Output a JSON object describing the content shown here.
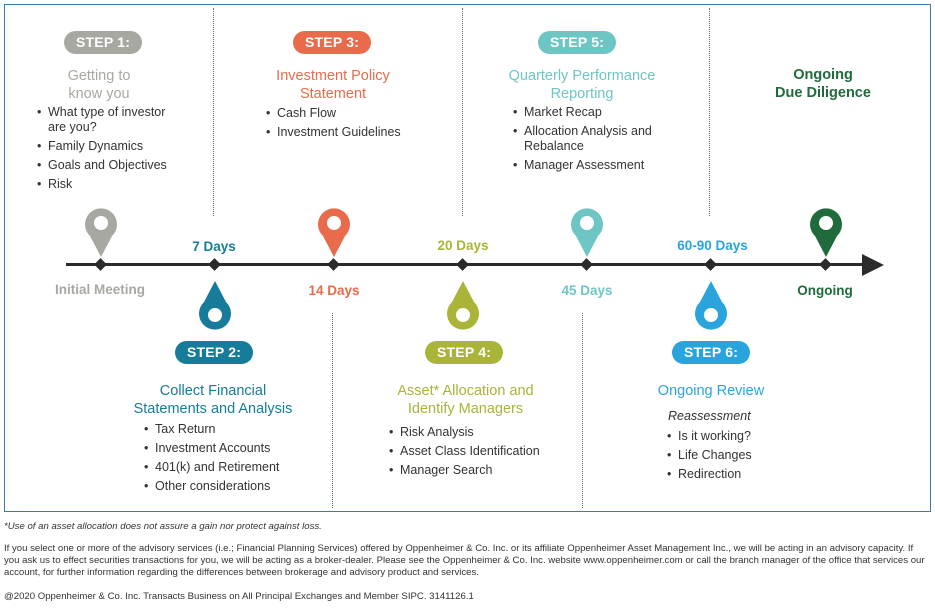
{
  "colors": {
    "step1": "#a8a8a2",
    "step2": "#167c99",
    "step3": "#ea6b4b",
    "step4": "#a9b439",
    "step5": "#6ec6c4",
    "step6": "#2aa4dc",
    "ongoing": "#1f6b3b",
    "frame": "#3f79a8",
    "axis": "#2b2b2b"
  },
  "icons": {
    "pin": "map-pin-icon",
    "arrow": "arrowhead-icon"
  },
  "timeline": {
    "initial": "Initial Meeting",
    "days7": "7 Days",
    "days14": "14 Days",
    "days20": "20 Days",
    "days45": "45 Days",
    "days6090": "60-90 Days",
    "ongoing": "Ongoing"
  },
  "step1": {
    "badge": "STEP 1:",
    "title_l1": "Getting to",
    "title_l2": "know you",
    "items": [
      "What type of investor are you?",
      "Family Dynamics",
      "Goals and Objectives",
      "Risk"
    ]
  },
  "step2": {
    "badge": "STEP 2:",
    "title_l1": "Collect Financial",
    "title_l2": "Statements and Analysis",
    "items": [
      "Tax Return",
      "Investment Accounts",
      "401(k) and Retirement",
      "Other considerations"
    ]
  },
  "step3": {
    "badge": "STEP 3:",
    "title_l1": "Investment Policy",
    "title_l2": "Statement",
    "items": [
      "Cash Flow",
      "Investment Guidelines"
    ]
  },
  "step4": {
    "badge": "STEP 4:",
    "title_l1": "Asset* Allocation and",
    "title_l2": "Identify Managers",
    "items": [
      "Risk Analysis",
      "Asset Class Identification",
      "Manager Search"
    ]
  },
  "step5": {
    "badge": "STEP 5:",
    "title_l1": "Quarterly Performance",
    "title_l2": "Reporting",
    "items": [
      "Market Recap",
      "Allocation Analysis and Rebalance",
      "Manager Assessment"
    ]
  },
  "step6": {
    "badge": "STEP 6:",
    "title": "Ongoing Review",
    "subtitle": "Reassessment",
    "items": [
      "Is it working?",
      "Life Changes",
      "Redirection"
    ]
  },
  "ongoing": {
    "title_l1": "Ongoing",
    "title_l2": "Due Diligence"
  },
  "footer": {
    "note": "*Use of an asset allocation does not assure a gain nor protect against loss.",
    "disclosure": "If you select one or more of the advisory services (i.e.; Financial Planning Services) offered by Oppenheimer & Co. Inc. or its affiliate Oppenheimer Asset Management Inc., we will be acting in an advisory capacity. If you ask us to effect securities transactions for you, we will be acting as a broker-dealer. Please see the Oppenheimer & Co. Inc. website www.oppenheimer.com or call the branch manager of the office that services our account, for further information regarding the differences between brokerage and advisory product and services.",
    "copyright": "@2020 Oppenheimer & Co. Inc. Transacts Business on All Principal Exchanges and Member SIPC. 3141126.1"
  }
}
